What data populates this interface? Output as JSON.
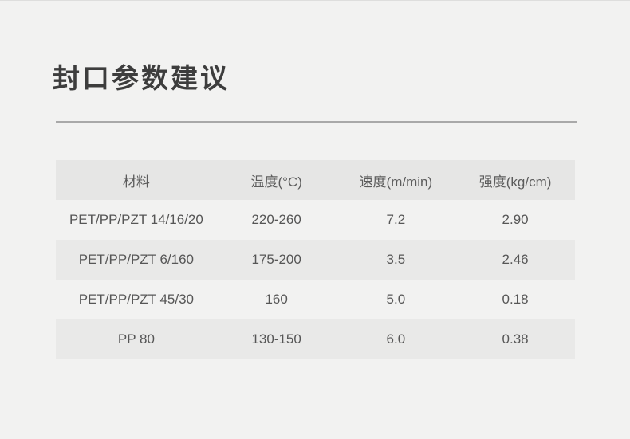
{
  "page": {
    "title": "封口参数建议"
  },
  "table": {
    "headers": [
      "材料",
      "温度(°C)",
      "速度(m/min)",
      "强度(kg/cm)"
    ],
    "rows": [
      {
        "material": "PET/PP/PZT 14/16/20",
        "temperature": "220-260",
        "speed": "7.2",
        "strength": "2.90"
      },
      {
        "material": "PET/PP/PZT 6/160",
        "temperature": "175-200",
        "speed": "3.5",
        "strength": "2.46"
      },
      {
        "material": "PET/PP/PZT 45/30",
        "temperature": "160",
        "speed": "5.0",
        "strength": "0.18"
      },
      {
        "material": "PP 80",
        "temperature": "130-150",
        "speed": "6.0",
        "strength": "0.38"
      }
    ]
  },
  "colors": {
    "background": "#f2f2f1",
    "header_row_bg": "#e6e6e5",
    "stripe_row_bg": "#e9e9e8",
    "divider": "#a9a9a9",
    "title_text": "#3d3d3d",
    "body_text": "#565656"
  },
  "chart_data": {
    "type": "table",
    "title": "封口参数建议",
    "columns": [
      "材料",
      "温度(°C)",
      "速度(m/min)",
      "强度(kg/cm)"
    ],
    "rows": [
      [
        "PET/PP/PZT 14/16/20",
        "220-260",
        "7.2",
        "2.90"
      ],
      [
        "PET/PP/PZT 6/160",
        "175-200",
        "3.5",
        "2.46"
      ],
      [
        "PET/PP/PZT 45/30",
        "160",
        "5.0",
        "0.18"
      ],
      [
        "PP 80",
        "130-150",
        "6.0",
        "0.38"
      ]
    ]
  }
}
